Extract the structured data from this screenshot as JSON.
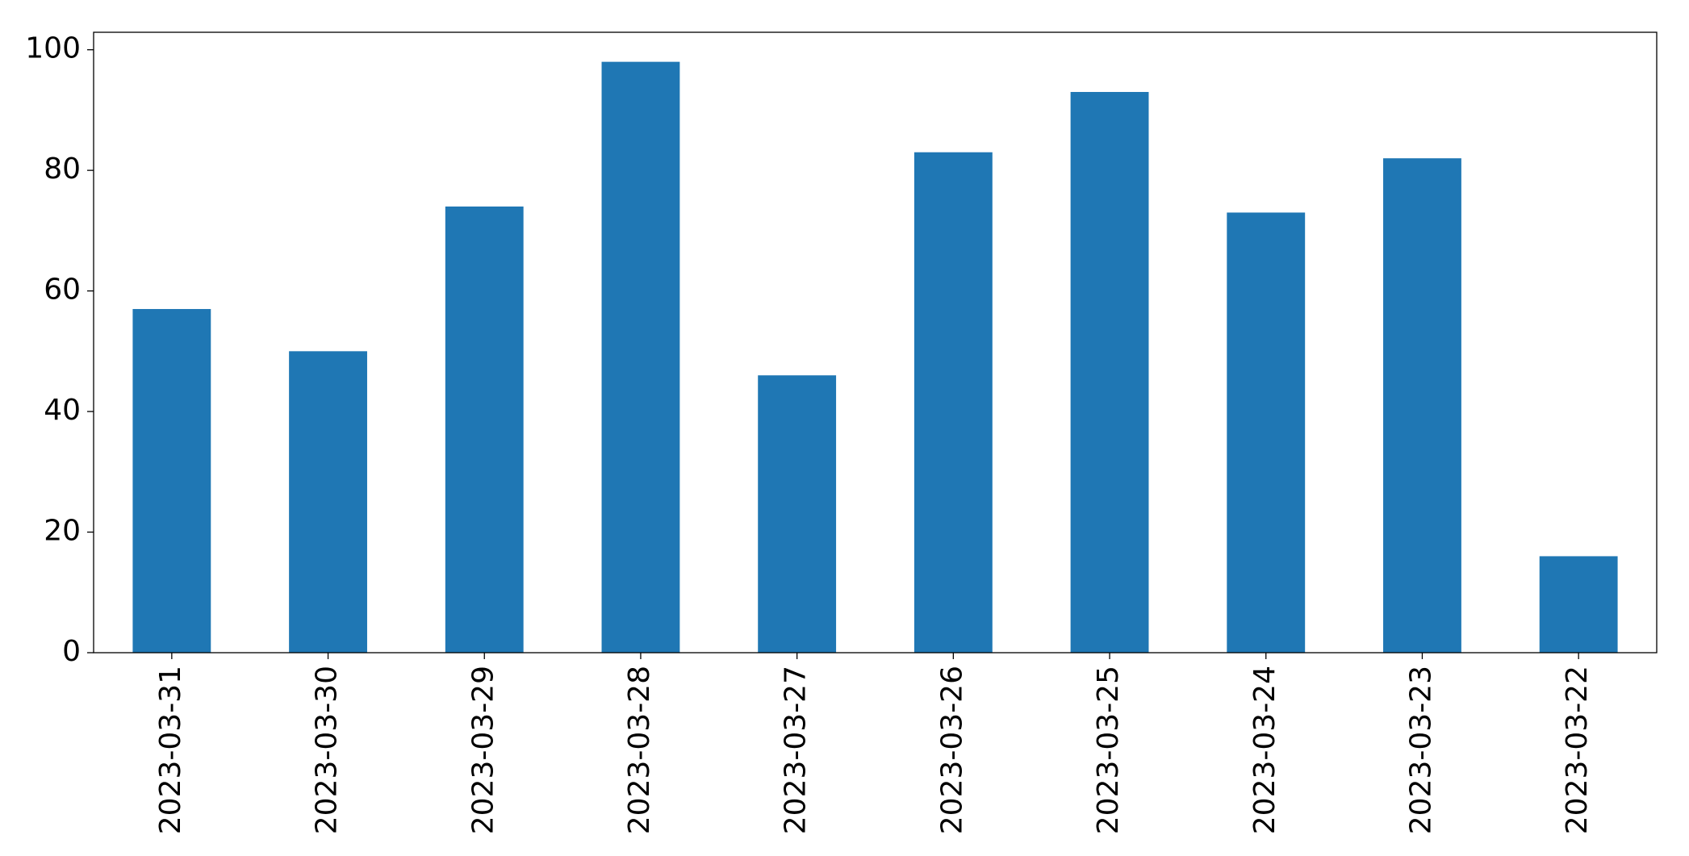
{
  "chart_data": {
    "type": "bar",
    "categories": [
      "2023-03-31",
      "2023-03-30",
      "2023-03-29",
      "2023-03-28",
      "2023-03-27",
      "2023-03-26",
      "2023-03-25",
      "2023-03-24",
      "2023-03-23",
      "2023-03-22"
    ],
    "values": [
      57,
      50,
      74,
      98,
      46,
      83,
      93,
      73,
      82,
      16
    ],
    "color": "#1f77b4",
    "ylim": [
      0,
      102.9
    ],
    "yticks": [
      0,
      20,
      40,
      60,
      80,
      100
    ],
    "grid": false
  }
}
